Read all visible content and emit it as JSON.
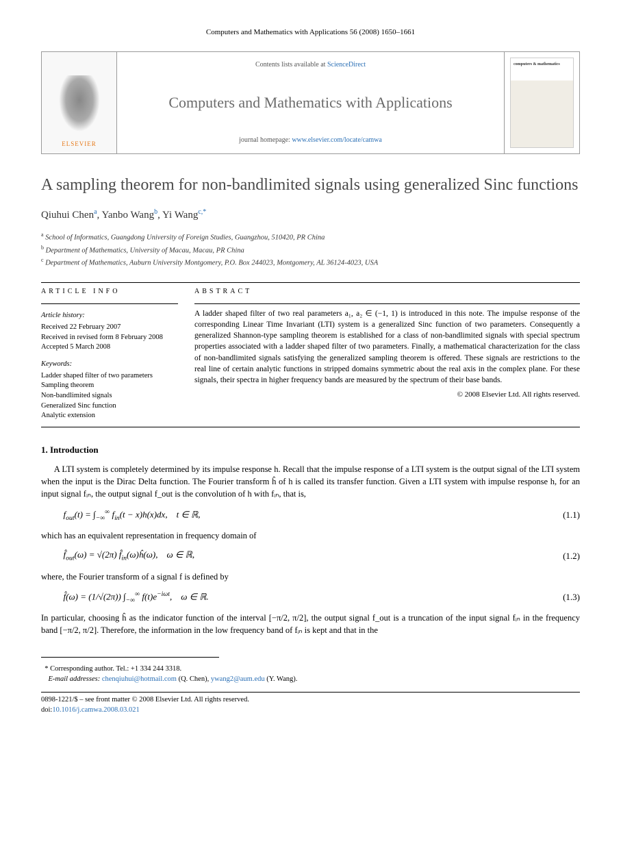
{
  "running_header": "Computers and Mathematics with Applications 56 (2008) 1650–1661",
  "masthead": {
    "publisher": "ELSEVIER",
    "contents_prefix": "Contents lists available at ",
    "contents_link": "ScienceDirect",
    "journal_name": "Computers and Mathematics with Applications",
    "homepage_prefix": "journal homepage: ",
    "homepage_link": "www.elsevier.com/locate/camwa",
    "cover_title": "computers & mathematics"
  },
  "title": "A sampling theorem for non-bandlimited signals using generalized Sinc functions",
  "authors": [
    {
      "name": "Qiuhui Chen",
      "marker": "a"
    },
    {
      "name": "Yanbo Wang",
      "marker": "b"
    },
    {
      "name": "Yi Wang",
      "marker": "c,*"
    }
  ],
  "affiliations": [
    {
      "marker": "a",
      "text": "School of Informatics, Guangdong University of Foreign Studies, Guangzhou, 510420, PR China"
    },
    {
      "marker": "b",
      "text": "Department of Mathematics, University of Macau, Macau, PR China"
    },
    {
      "marker": "c",
      "text": "Department of Mathematics, Auburn University Montgomery, P.O. Box 244023, Montgomery, AL 36124-4023, USA"
    }
  ],
  "article_info": {
    "heading": "ARTICLE INFO",
    "history_heading": "Article history:",
    "history": [
      "Received 22 February 2007",
      "Received in revised form 8 February 2008",
      "Accepted 5 March 2008"
    ],
    "keywords_heading": "Keywords:",
    "keywords": [
      "Ladder shaped filter of two parameters",
      "Sampling theorem",
      "Non-bandlimited signals",
      "Generalized Sinc function",
      "Analytic extension"
    ]
  },
  "abstract": {
    "heading": "ABSTRACT",
    "text": "A ladder shaped filter of two real parameters a₁, a₂ ∈ (−1, 1) is introduced in this note. The impulse response of the corresponding Linear Time Invariant (LTI) system is a generalized Sinc function of two parameters. Consequently a generalized Shannon-type sampling theorem is established for a class of non-bandlimited signals with special spectrum properties associated with a ladder shaped filter of two parameters. Finally, a mathematical characterization for the class of non-bandlimited signals satisfying the generalized sampling theorem is offered. These signals are restrictions to the real line of certain analytic functions in stripped domains symmetric about the real axis in the complex plane. For these signals, their spectra in higher frequency bands are measured by the spectrum of their base bands.",
    "copyright": "© 2008 Elsevier Ltd. All rights reserved."
  },
  "section1": {
    "heading": "1. Introduction",
    "para1": "A LTI system is completely determined by its impulse response h. Recall that the impulse response of a LTI system is the output signal of the LTI system when the input is the Dirac Delta function. The Fourier transform ĥ of h is called its transfer function. Given a LTI system with impulse response h, for an input signal fᵢₙ, the output signal f_out is the convolution of h with fᵢₙ, that is,",
    "eq1_num": "(1.1)",
    "para2": "which has an equivalent representation in frequency domain of",
    "eq2_num": "(1.2)",
    "para3": "where, the Fourier transform of a signal f is defined by",
    "eq3_num": "(1.3)",
    "para4": "In particular, choosing ĥ as the indicator function of the interval [−π/2, π/2], the output signal f_out is a truncation of the input signal fᵢₙ in the frequency band [−π/2, π/2]. Therefore, the information in the low frequency band of fᵢₙ is kept and that in the"
  },
  "footnotes": {
    "corresponding": "Corresponding author. Tel.: +1 334 244 3318.",
    "email_label": "E-mail addresses:",
    "emails": [
      {
        "addr": "chenqiuhui@hotmail.com",
        "who": "(Q. Chen)"
      },
      {
        "addr": "ywang2@aum.edu",
        "who": "(Y. Wang)"
      }
    ]
  },
  "bottom": {
    "issn_line": "0898-1221/$ – see front matter © 2008 Elsevier Ltd. All rights reserved.",
    "doi_label": "doi:",
    "doi": "10.1016/j.camwa.2008.03.021"
  },
  "colors": {
    "link": "#2a6fb5",
    "title_gray": "#4a4a4a",
    "journal_gray": "#6b6b6b",
    "elsevier_orange": "#e67817"
  }
}
